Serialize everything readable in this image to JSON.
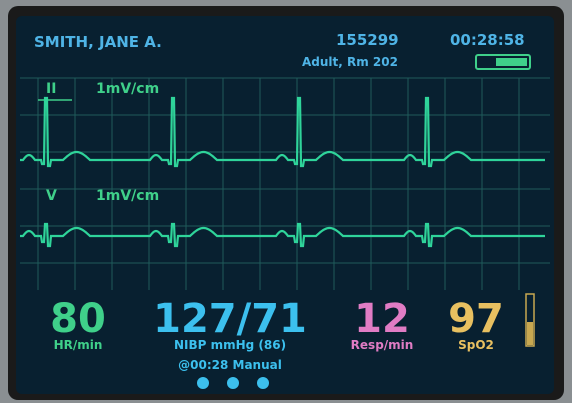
{
  "header": {
    "patient_name": "SMITH, JANE A.",
    "patient_id": "155299",
    "time": "00:28:58",
    "location": "Adult,  Rm 202"
  },
  "leads": [
    {
      "name": "II",
      "scale": "1mV/cm"
    },
    {
      "name": "V",
      "scale": "1mV/cm"
    }
  ],
  "vitals": {
    "hr": {
      "value": "80",
      "label": "HR/min"
    },
    "nibp": {
      "value": "127/71",
      "label": "NIBP mmHg (86)",
      "note": "@00:28 Manual"
    },
    "resp": {
      "value": "12",
      "label": "Resp/min"
    },
    "spo2": {
      "value": "97",
      "label": "SpO2"
    }
  }
}
